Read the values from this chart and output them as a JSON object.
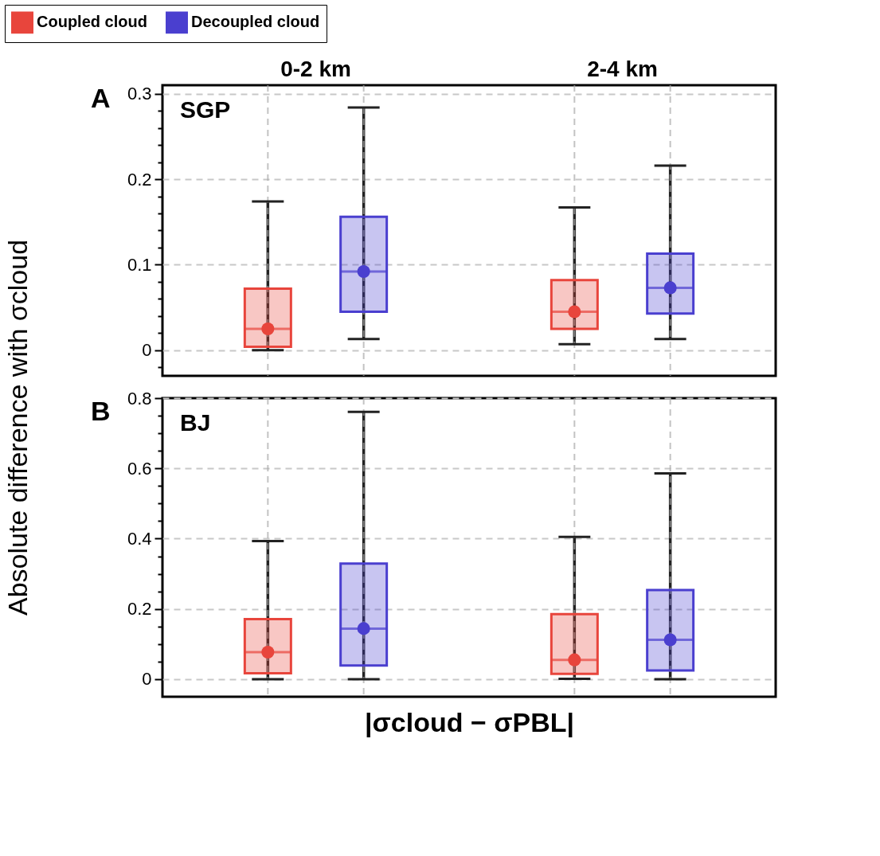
{
  "chart_data": [
    {
      "type": "box",
      "categories": [
        "0-2 km",
        "2-4 km"
      ],
      "ylabel": "Absolute difference with σcloud",
      "legend": "top",
      "grid": true,
      "tick_labels": true,
      "ylim": [
        -0.03,
        0.31
      ],
      "yticks": [
        {
          "value": -0.02,
          "label": null
        },
        0,
        {
          "value": 0.02,
          "label": null
        },
        {
          "value": 0.04,
          "label": null
        },
        {
          "value": 0.06,
          "label": null
        },
        {
          "value": 0.08,
          "label": null
        },
        0.1,
        {
          "value": 0.12,
          "label": null
        },
        {
          "value": 0.14,
          "label": null
        },
        {
          "value": 0.16,
          "label": null
        },
        {
          "value": 0.18,
          "label": null
        },
        0.2,
        {
          "value": 0.22,
          "label": null
        },
        {
          "value": 0.24,
          "label": null
        },
        {
          "value": 0.26,
          "label": null
        },
        {
          "value": 0.28,
          "label": null
        },
        0.3
      ],
      "annotations": [
        "A",
        "SGP"
      ],
      "series": [
        {
          "name": "Coupled cloud",
          "color": "#e8453c",
          "boxes": [
            {
              "low": 0.0,
              "q1": 0.004,
              "median": 0.025,
              "q3": 0.072,
              "high": 0.174,
              "mean": 0.025
            },
            {
              "low": 0.007,
              "q1": 0.025,
              "median": 0.045,
              "q3": 0.082,
              "high": 0.167,
              "mean": 0.045
            }
          ]
        },
        {
          "name": "Decoupled cloud",
          "color": "#4a3fcf",
          "boxes": [
            {
              "low": 0.013,
              "q1": 0.045,
              "median": 0.092,
              "q3": 0.156,
              "high": 0.284,
              "mean": 0.092
            },
            {
              "low": 0.013,
              "q1": 0.043,
              "median": 0.073,
              "q3": 0.113,
              "high": 0.216,
              "mean": 0.073
            }
          ]
        }
      ]
    },
    {
      "type": "box",
      "categories": [
        null,
        null
      ],
      "xlabel": "|σcloud − σPBL|",
      "grid": true,
      "tick_labels": "y",
      "ylim": [
        -0.05,
        0.8
      ],
      "yticks": [
        0,
        {
          "value": 0.05,
          "label": null
        },
        {
          "value": 0.1,
          "label": null
        },
        {
          "value": 0.15,
          "label": null
        },
        0.2,
        {
          "value": 0.25,
          "label": null
        },
        {
          "value": 0.3,
          "label": null
        },
        {
          "value": 0.35,
          "label": null
        },
        0.4,
        {
          "value": 0.45,
          "label": null
        },
        {
          "value": 0.5,
          "label": null
        },
        {
          "value": 0.55,
          "label": null
        },
        0.6,
        {
          "value": 0.65,
          "label": null
        },
        {
          "value": 0.7,
          "label": null
        },
        {
          "value": 0.75,
          "label": null
        },
        0.8
      ],
      "annotations": [
        "B",
        "BJ"
      ],
      "series": [
        {
          "color": "#e8453c",
          "boxes": [
            {
              "low": 0.0,
              "q1": 0.017,
              "median": 0.077,
              "q3": 0.171,
              "high": 0.393,
              "mean": 0.077
            },
            {
              "low": 0.001,
              "q1": 0.015,
              "median": 0.055,
              "q3": 0.185,
              "high": 0.405,
              "mean": 0.055
            }
          ]
        },
        {
          "color": "#4a3fcf",
          "boxes": [
            {
              "low": 0.0,
              "q1": 0.039,
              "median": 0.144,
              "q3": 0.329,
              "high": 0.761,
              "mean": 0.144
            },
            {
              "low": 0.0,
              "q1": 0.025,
              "median": 0.112,
              "q3": 0.254,
              "high": 0.586,
              "mean": 0.112
            }
          ]
        }
      ]
    }
  ]
}
